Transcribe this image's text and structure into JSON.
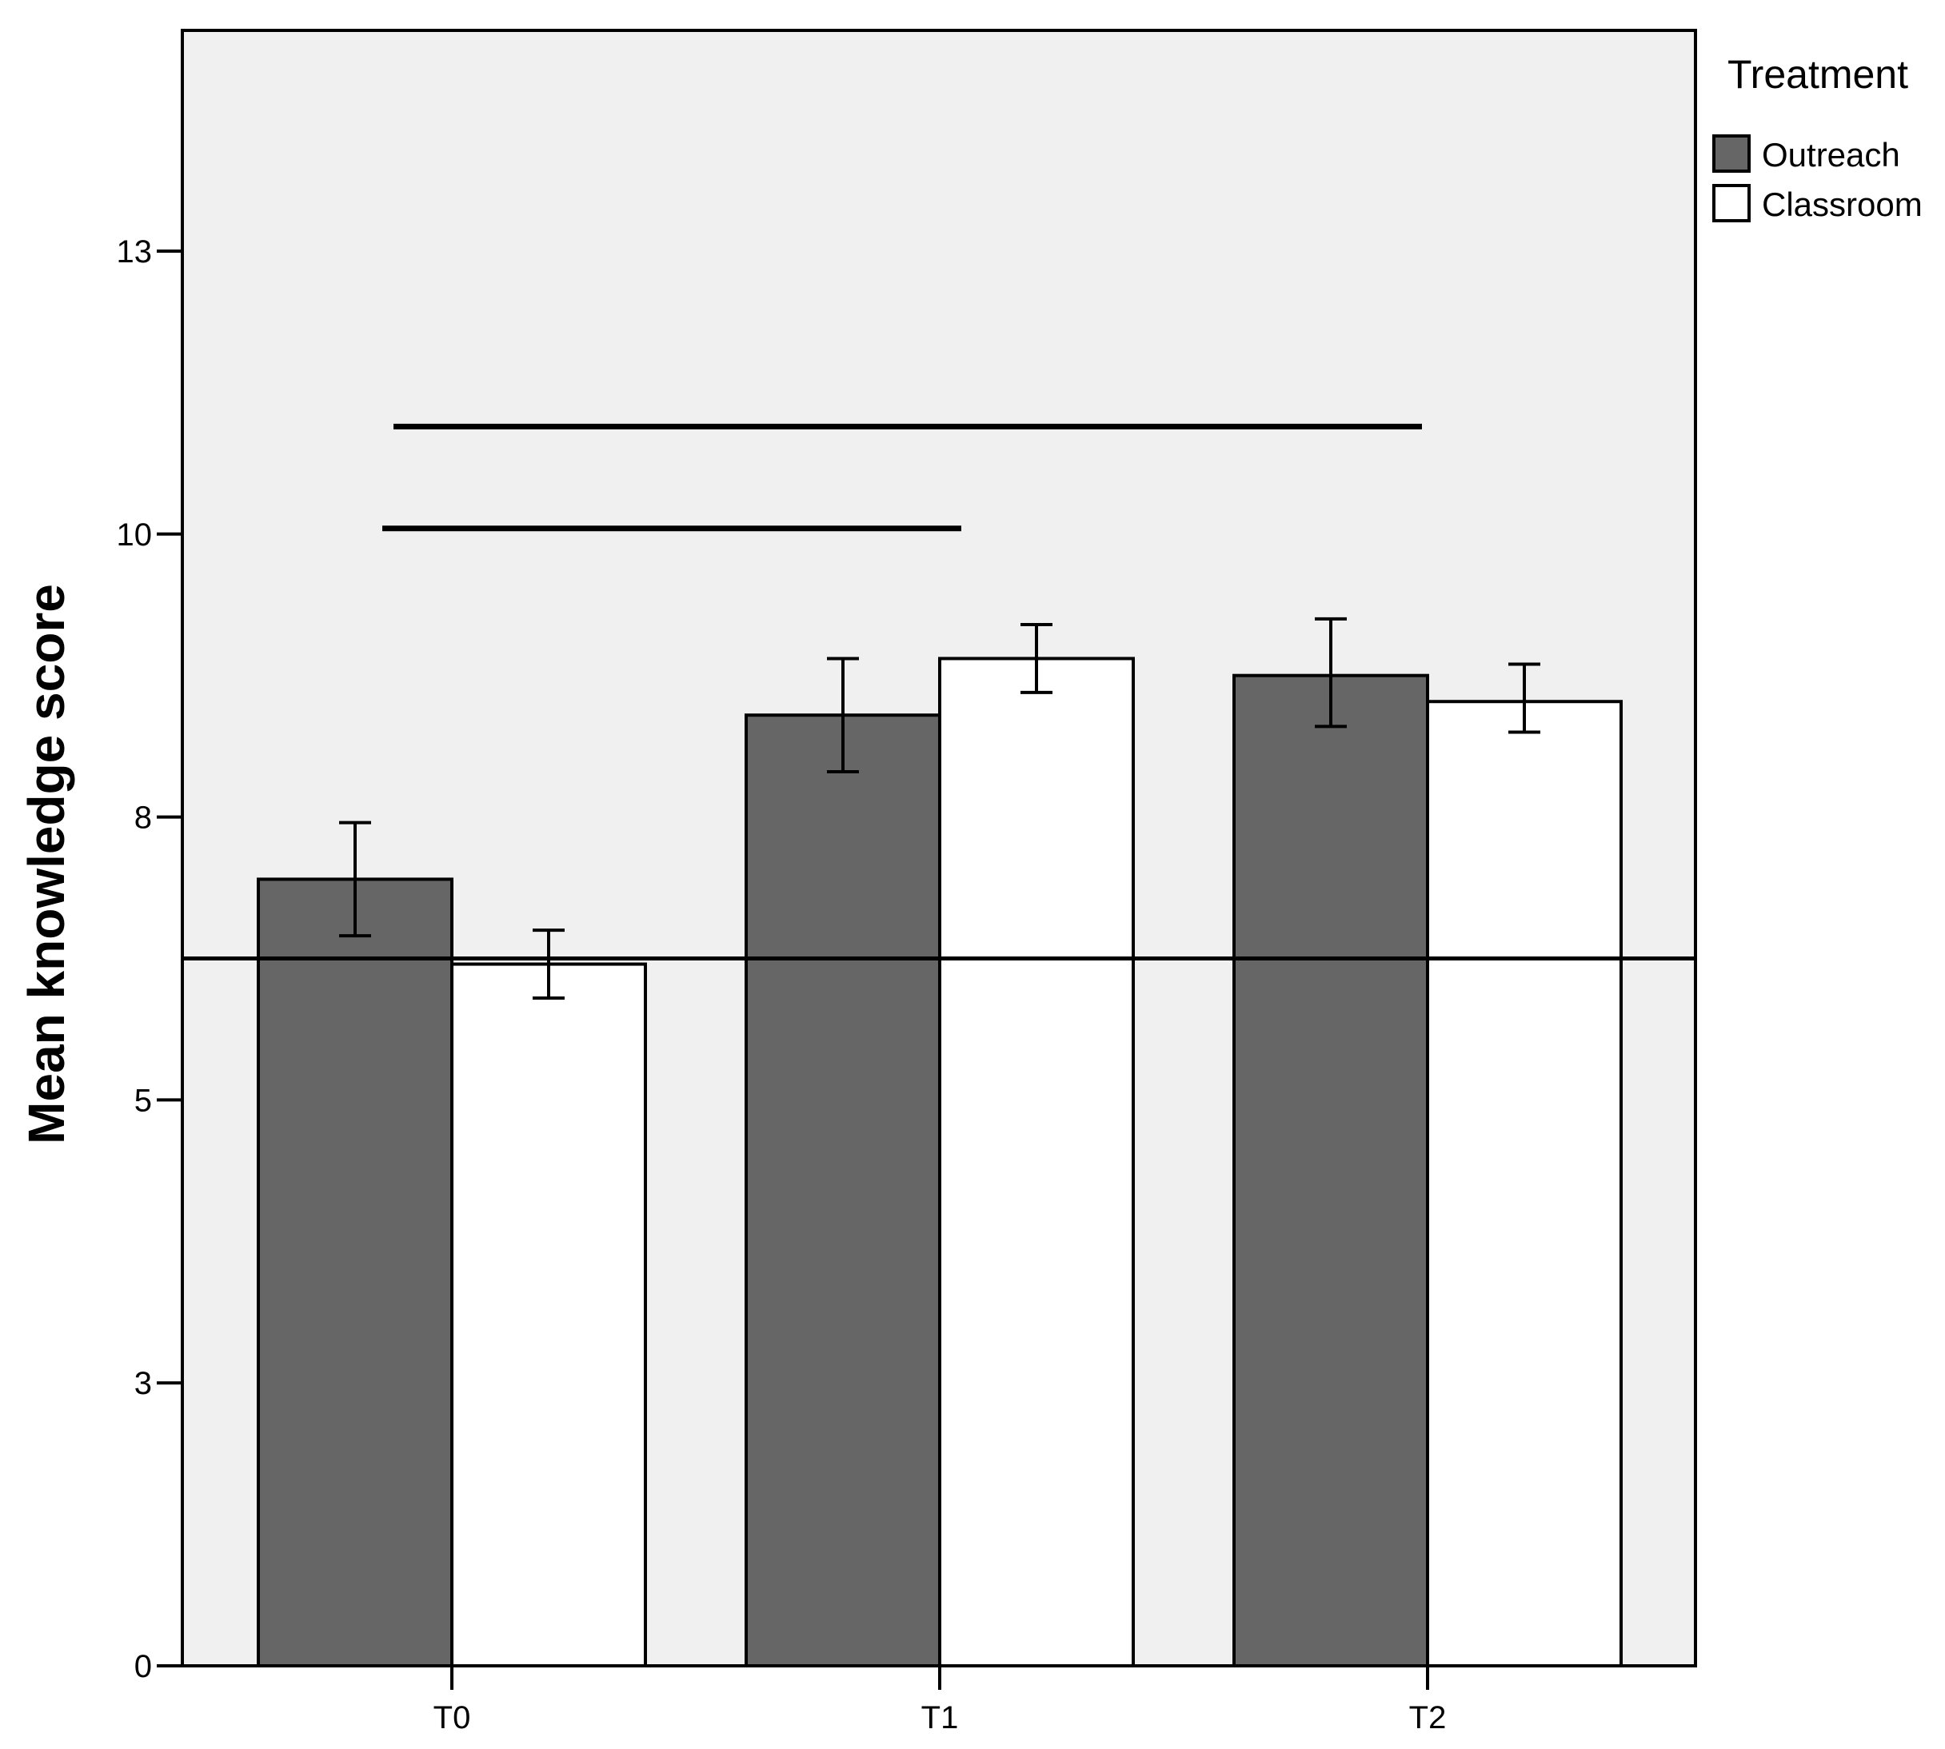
{
  "chart_data": {
    "type": "bar",
    "categories": [
      "T0",
      "T1",
      "T2"
    ],
    "series": [
      {
        "name": "Outreach",
        "color": "#666666",
        "values": [
          6.95,
          8.4,
          8.75
        ],
        "error_low": [
          6.45,
          7.9,
          8.3
        ],
        "error_high": [
          7.45,
          8.9,
          9.25
        ]
      },
      {
        "name": "Classroom",
        "color": "#ffffff",
        "values": [
          6.2,
          8.9,
          8.52
        ],
        "error_low": [
          5.9,
          8.6,
          8.25
        ],
        "error_high": [
          6.5,
          9.2,
          8.85
        ]
      }
    ],
    "ylabel": "Mean knowledge score",
    "xlabel": "",
    "y_ticks": [
      {
        "value": 0,
        "label": "0"
      },
      {
        "value": 2.5,
        "label": "3"
      },
      {
        "value": 5,
        "label": "5"
      },
      {
        "value": 7.5,
        "label": "8"
      },
      {
        "value": 10,
        "label": "10"
      },
      {
        "value": 12.5,
        "label": "13"
      }
    ],
    "ylim": [
      0,
      14.45
    ],
    "reference_line": 6.25,
    "significance_bars": [
      {
        "from_value": 0,
        "to_value": 1,
        "y": 10.05
      },
      {
        "from_value": 0,
        "to_value": 2,
        "y": 10.95
      }
    ],
    "legend": {
      "title": "Treatment",
      "position": "right"
    },
    "plot_background": "#f0f0f0"
  }
}
